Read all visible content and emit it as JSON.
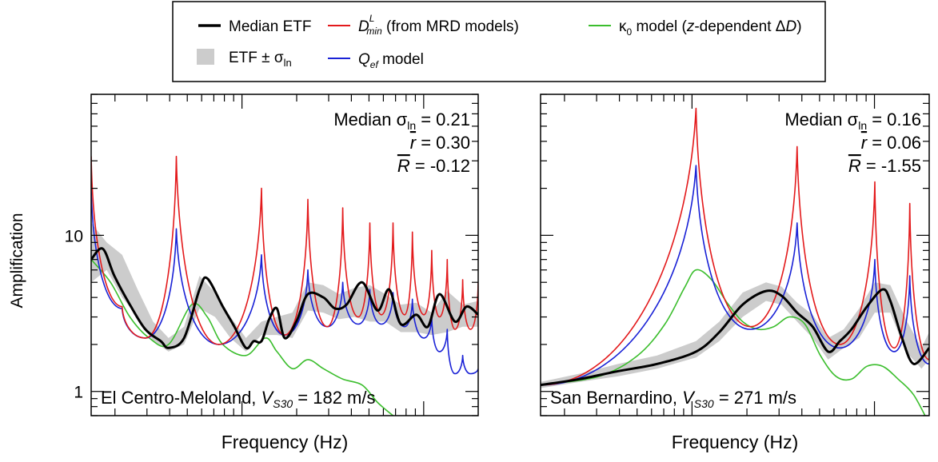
{
  "legend": {
    "items": [
      {
        "key": "median",
        "label": "Median ETF",
        "color": "#000000"
      },
      {
        "key": "band",
        "label_pre": "ETF ± σ",
        "label_sub": "ln",
        "color": "#cccccc"
      },
      {
        "key": "dmin",
        "sym": "D",
        "sup": "L",
        "sub": "min",
        "label_post": " (from MRD models)",
        "color": "#e31a1c"
      },
      {
        "key": "qef",
        "sym": "Q",
        "sub": "ef",
        "label_post": " model",
        "color": "#1a22d6"
      },
      {
        "key": "kappa",
        "sym_pre": "κ",
        "sub": "0",
        "label_mid": " model (",
        "italic_z": "z",
        "label_mid2": "-dependent Δ",
        "italic_d": "D",
        "label_end": ")",
        "color": "#3cbe2e"
      }
    ]
  },
  "y_axis_label": "Amplification",
  "chart_data": [
    {
      "type": "line",
      "panel": "left",
      "xlabel": "Frequency (Hz)",
      "ylabel": "Amplification",
      "yscale": "log",
      "xscale": "log",
      "ylim": [
        0.7,
        80
      ],
      "y_ticks": [
        1,
        10
      ],
      "site": "El Centro-Meloland",
      "vs30_label": "V",
      "vs30_sub": "S30",
      "vs30_value": " = 182 m/s",
      "stats": {
        "median_sigma_label": "Median σ",
        "median_sigma_sub": "ln",
        "median_sigma": " = 0.21",
        "r_label": "r",
        "r": " = 0.30",
        "R_label": "R",
        "R": " = -0.12"
      },
      "series": [
        {
          "name": "Median ETF",
          "color": "#000000",
          "x": [
            0,
            0.03,
            0.06,
            0.1,
            0.14,
            0.18,
            0.2,
            0.24,
            0.28,
            0.3,
            0.34,
            0.37,
            0.4,
            0.42,
            0.44,
            0.46,
            0.48,
            0.5,
            0.53,
            0.56,
            0.6,
            0.63,
            0.66,
            0.7,
            0.74,
            0.77,
            0.8,
            0.84,
            0.87,
            0.9,
            0.94,
            0.97,
            1
          ],
          "y": [
            7,
            8.2,
            5.5,
            3.6,
            2.5,
            2.1,
            1.9,
            2.2,
            4.5,
            5.3,
            3.5,
            2.6,
            1.9,
            2.1,
            2.1,
            2.9,
            3.4,
            2.2,
            2.8,
            4.2,
            4.0,
            3.4,
            3.6,
            5.0,
            3.3,
            4.5,
            2.7,
            3.1,
            2.6,
            4.2,
            2.8,
            3.5,
            3.1
          ]
        },
        {
          "name": "D min",
          "color": "#e31a1c",
          "peaks": [
            [
              0,
              32
            ],
            [
              0.22,
              32
            ],
            [
              0.44,
              20
            ],
            [
              0.56,
              17
            ],
            [
              0.65,
              15
            ],
            [
              0.72,
              12
            ],
            [
              0.78,
              12
            ],
            [
              0.83,
              10.5
            ],
            [
              0.88,
              8
            ],
            [
              0.92,
              7
            ],
            [
              0.96,
              5.2
            ],
            [
              1,
              5
            ]
          ],
          "troughs": [
            [
              0.08,
              3.5
            ],
            [
              0.14,
              2.2
            ],
            [
              0.33,
              2.0
            ],
            [
              0.5,
              2.3
            ],
            [
              0.61,
              2.6
            ],
            [
              0.69,
              3.0
            ],
            [
              0.75,
              3.1
            ],
            [
              0.81,
              3.1
            ],
            [
              0.86,
              3.1
            ],
            [
              0.9,
              3.0
            ],
            [
              0.94,
              2.5
            ],
            [
              0.98,
              2.5
            ]
          ]
        },
        {
          "name": "Qef",
          "color": "#1a22d6",
          "peaks": [
            [
              0,
              20
            ],
            [
              0.22,
              11
            ],
            [
              0.44,
              7.5
            ],
            [
              0.56,
              6
            ],
            [
              0.65,
              5
            ],
            [
              0.72,
              4.5
            ],
            [
              0.78,
              4.3
            ],
            [
              0.83,
              3.9
            ],
            [
              0.88,
              3.0
            ],
            [
              0.92,
              2.5
            ],
            [
              0.96,
              1.7
            ],
            [
              1,
              1.4
            ]
          ],
          "troughs": [
            [
              0.08,
              3.4
            ],
            [
              0.14,
              2.2
            ],
            [
              0.33,
              2.0
            ],
            [
              0.5,
              2.3
            ],
            [
              0.61,
              2.6
            ],
            [
              0.69,
              2.7
            ],
            [
              0.75,
              2.7
            ],
            [
              0.81,
              2.6
            ],
            [
              0.86,
              2.2
            ],
            [
              0.9,
              1.8
            ],
            [
              0.94,
              1.3
            ],
            [
              0.98,
              1.3
            ]
          ]
        },
        {
          "name": "kappa0",
          "color": "#3cbe2e",
          "x": [
            0,
            0.05,
            0.1,
            0.15,
            0.2,
            0.26,
            0.3,
            0.34,
            0.4,
            0.45,
            0.48,
            0.52,
            0.56,
            0.6,
            0.65,
            0.7,
            0.74,
            0.78
          ],
          "y": [
            7,
            5,
            3.0,
            2.2,
            2.0,
            3.6,
            3.0,
            2.0,
            1.7,
            2.2,
            1.8,
            1.4,
            1.6,
            1.4,
            1.2,
            1.1,
            0.85,
            0.7
          ]
        }
      ],
      "band": {
        "x": [
          0,
          0.04,
          0.08,
          0.12,
          0.16,
          0.2,
          0.24,
          0.28,
          0.32,
          0.36,
          0.4,
          0.44,
          0.48,
          0.52,
          0.56,
          0.6,
          0.64,
          0.68,
          0.72,
          0.76,
          0.8,
          0.84,
          0.88,
          0.92,
          0.96,
          1
        ],
        "lo": [
          5,
          6,
          4,
          3.0,
          2.1,
          1.8,
          2.0,
          3.4,
          3.0,
          2.2,
          1.8,
          2.3,
          2.3,
          2.2,
          3.3,
          3.2,
          2.9,
          3.0,
          2.8,
          2.8,
          2.4,
          2.4,
          2.3,
          2.4,
          2.6,
          2.6
        ],
        "hi": [
          12,
          9,
          7.5,
          4.5,
          2.8,
          2.2,
          2.6,
          5.5,
          4.3,
          3.0,
          2.2,
          2.8,
          3.0,
          3.2,
          5.0,
          4.8,
          4.2,
          4.6,
          4.8,
          4.2,
          3.6,
          3.7,
          3.2,
          4.4,
          3.6,
          3.8
        ]
      }
    },
    {
      "type": "line",
      "panel": "right",
      "xlabel": "Frequency (Hz)",
      "yscale": "log",
      "xscale": "log",
      "ylim": [
        0.7,
        80
      ],
      "site": "San Bernardino",
      "vs30_label": "V",
      "vs30_sub": "S30",
      "vs30_value": " = 271 m/s",
      "stats": {
        "median_sigma_label": "Median σ",
        "median_sigma_sub": "ln",
        "median_sigma": " = 0.16",
        "r_label": "r",
        "r": " = 0.06",
        "R_label": "R",
        "R": " = -1.55"
      },
      "series": [
        {
          "name": "Median ETF",
          "color": "#000000",
          "x": [
            0,
            0.1,
            0.2,
            0.3,
            0.4,
            0.46,
            0.52,
            0.58,
            0.62,
            0.66,
            0.7,
            0.74,
            0.77,
            0.8,
            0.84,
            0.88,
            0.9,
            0.93,
            0.96,
            1
          ],
          "y": [
            1.1,
            1.2,
            1.35,
            1.5,
            1.8,
            2.4,
            3.6,
            4.4,
            4.1,
            3.2,
            2.6,
            1.8,
            2.1,
            2.5,
            3.5,
            4.5,
            3.8,
            2.2,
            1.5,
            1.9
          ]
        },
        {
          "name": "D min",
          "color": "#e31a1c",
          "peaks": [
            [
              0.4,
              65
            ],
            [
              0.66,
              37
            ],
            [
              0.86,
              22
            ],
            [
              0.95,
              16
            ]
          ],
          "troughs": [
            [
              0,
              1.1
            ],
            [
              0.54,
              2.6
            ],
            [
              0.77,
              2.0
            ],
            [
              0.91,
              1.9
            ],
            [
              1,
              1.6
            ]
          ]
        },
        {
          "name": "Qef",
          "color": "#1a22d6",
          "peaks": [
            [
              0.4,
              28
            ],
            [
              0.66,
              12
            ],
            [
              0.86,
              7
            ],
            [
              0.95,
              5.5
            ]
          ],
          "troughs": [
            [
              0,
              1.1
            ],
            [
              0.54,
              2.5
            ],
            [
              0.77,
              1.9
            ],
            [
              0.91,
              1.8
            ],
            [
              1,
              1.5
            ]
          ]
        },
        {
          "name": "kappa0",
          "color": "#3cbe2e",
          "x": [
            0,
            0.15,
            0.25,
            0.32,
            0.37,
            0.4,
            0.44,
            0.48,
            0.52,
            0.56,
            0.6,
            0.64,
            0.68,
            0.72,
            0.76,
            0.8,
            0.84,
            0.88,
            0.92,
            0.96,
            1
          ],
          "y": [
            1.1,
            1.25,
            1.7,
            2.7,
            4.6,
            6,
            5.2,
            3.7,
            2.8,
            2.5,
            2.6,
            3.0,
            2.7,
            1.7,
            1.25,
            1.2,
            1.45,
            1.45,
            1.2,
            0.95,
            0.62
          ]
        }
      ],
      "band": {
        "x": [
          0,
          0.1,
          0.2,
          0.3,
          0.4,
          0.46,
          0.52,
          0.58,
          0.62,
          0.66,
          0.7,
          0.74,
          0.78,
          0.82,
          0.86,
          0.9,
          0.94,
          0.98,
          1
        ],
        "lo": [
          1.05,
          1.15,
          1.25,
          1.4,
          1.65,
          2.1,
          3.0,
          3.8,
          3.6,
          2.8,
          2.2,
          1.6,
          1.9,
          2.2,
          3.2,
          3.2,
          1.8,
          1.4,
          1.6
        ],
        "hi": [
          1.15,
          1.3,
          1.5,
          1.7,
          2.1,
          2.8,
          4.3,
          5.0,
          4.7,
          3.7,
          3.1,
          2.2,
          2.5,
          3.4,
          5.0,
          4.8,
          2.9,
          1.9,
          2.4
        ]
      }
    }
  ]
}
